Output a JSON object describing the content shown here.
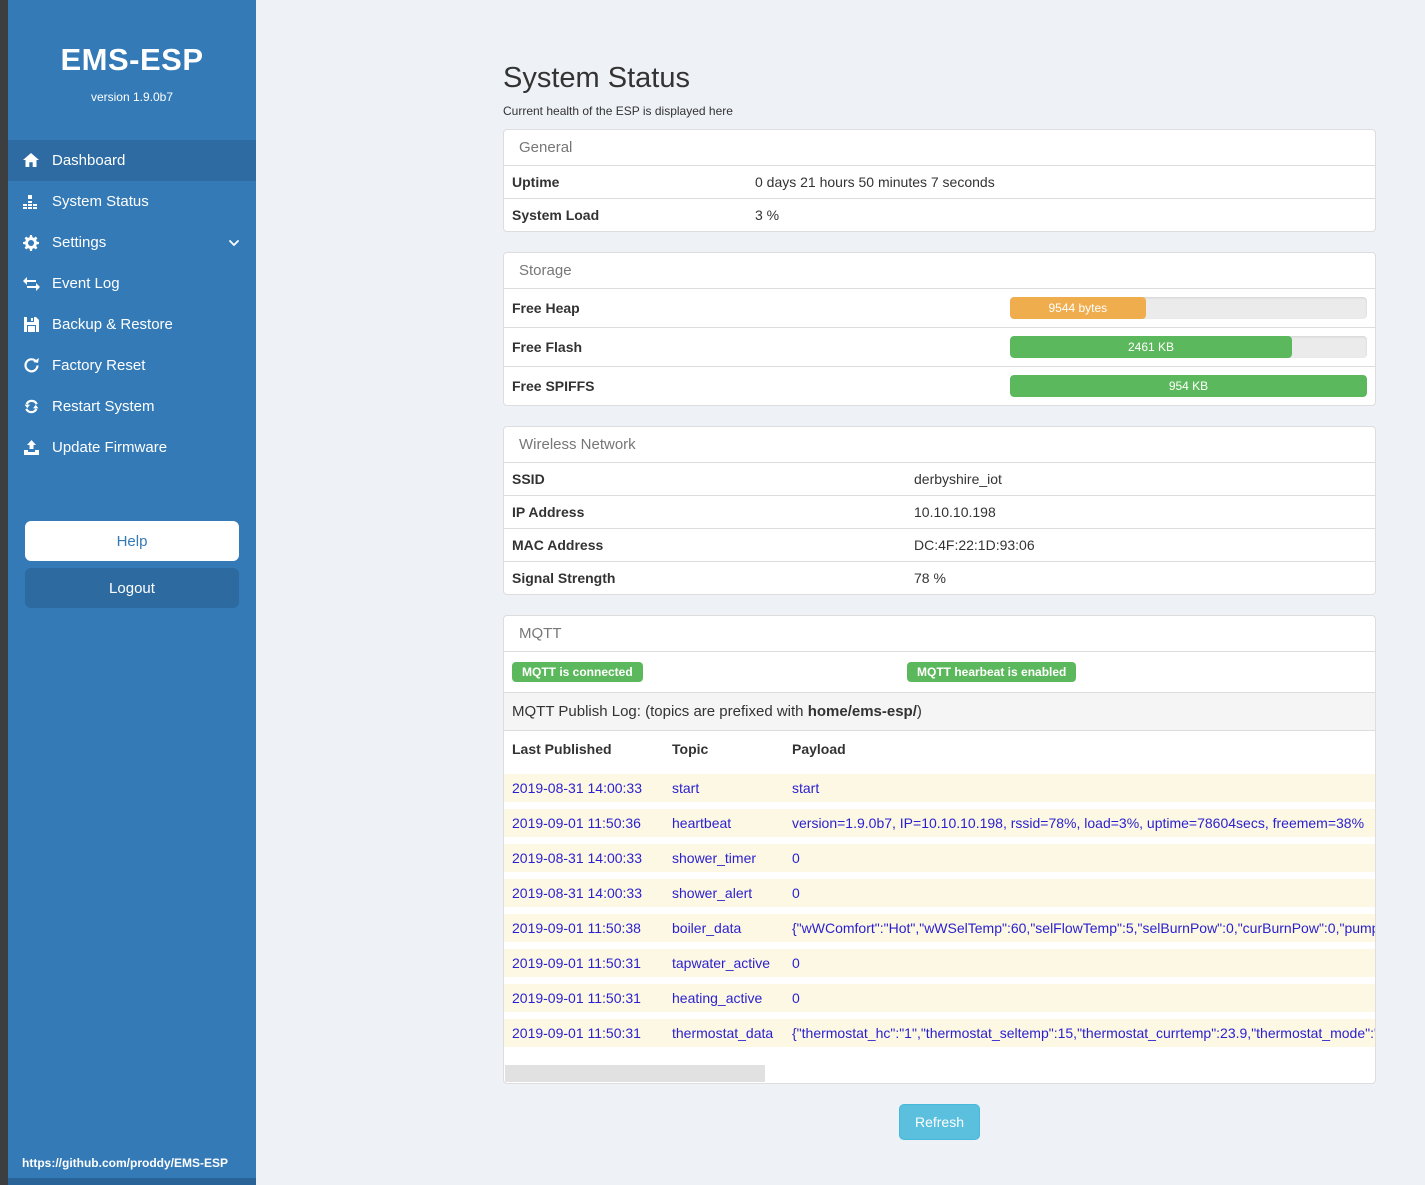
{
  "sidebar": {
    "title": "EMS-ESP",
    "version": "version 1.9.0b7",
    "items": [
      {
        "label": "Dashboard",
        "icon": "home-icon",
        "active": true
      },
      {
        "label": "System Status",
        "icon": "system-status-icon"
      },
      {
        "label": "Settings",
        "icon": "gear-icon"
      },
      {
        "label": "Event Log",
        "icon": "exchange-icon"
      },
      {
        "label": "Backup & Restore",
        "icon": "save-icon"
      },
      {
        "label": "Factory Reset",
        "icon": "rotate-icon"
      },
      {
        "label": "Restart System",
        "icon": "sync-icon"
      },
      {
        "label": "Update Firmware",
        "icon": "upload-icon"
      }
    ],
    "help_label": "Help",
    "logout_label": "Logout",
    "footer_link": "https://github.com/proddy/EMS-ESP"
  },
  "page": {
    "title": "System Status",
    "subtitle": "Current health of the ESP is displayed here",
    "refresh_label": "Refresh"
  },
  "panels": {
    "general": {
      "title": "General",
      "rows": [
        {
          "label": "Uptime",
          "value": "0 days 21 hours 50 minutes 7 seconds"
        },
        {
          "label": "System Load",
          "value": "3 %"
        }
      ]
    },
    "storage": {
      "title": "Storage",
      "rows": [
        {
          "label": "Free Heap",
          "value": "9544 bytes",
          "percent": 38,
          "color": "#f0ad4e"
        },
        {
          "label": "Free Flash",
          "value": "2461 KB",
          "percent": 79,
          "color": "#5cb85c"
        },
        {
          "label": "Free SPIFFS",
          "value": "954 KB",
          "percent": 100,
          "color": "#5cb85c"
        }
      ]
    },
    "wireless": {
      "title": "Wireless Network",
      "rows": [
        {
          "label": "SSID",
          "value": "derbyshire_iot"
        },
        {
          "label": "IP Address",
          "value": "10.10.10.198"
        },
        {
          "label": "MAC Address",
          "value": "DC:4F:22:1D:93:06"
        },
        {
          "label": "Signal Strength",
          "value": "78 %"
        }
      ]
    },
    "mqtt": {
      "title": "MQTT",
      "badges": [
        "MQTT is connected",
        "MQTT hearbeat is enabled"
      ],
      "log_caption_prefix": "MQTT Publish Log: (topics are prefixed with ",
      "log_caption_bold": "home/ems-esp/",
      "log_caption_suffix": ")",
      "columns": [
        "Last Published",
        "Topic",
        "Payload"
      ],
      "rows": [
        {
          "time": "2019-08-31 14:00:33",
          "topic": "start",
          "payload": "start"
        },
        {
          "time": "2019-09-01 11:50:36",
          "topic": "heartbeat",
          "payload": "version=1.9.0b7, IP=10.10.10.198, rssid=78%, load=3%, uptime=78604secs, freemem=38%"
        },
        {
          "time": "2019-08-31 14:00:33",
          "topic": "shower_timer",
          "payload": "0"
        },
        {
          "time": "2019-08-31 14:00:33",
          "topic": "shower_alert",
          "payload": "0"
        },
        {
          "time": "2019-09-01 11:50:38",
          "topic": "boiler_data",
          "payload": "{\"wWComfort\":\"Hot\",\"wWSelTemp\":60,\"selFlowTemp\":5,\"selBurnPow\":0,\"curBurnPow\":0,\"pump"
        },
        {
          "time": "2019-09-01 11:50:31",
          "topic": "tapwater_active",
          "payload": "0"
        },
        {
          "time": "2019-09-01 11:50:31",
          "topic": "heating_active",
          "payload": "0"
        },
        {
          "time": "2019-09-01 11:50:31",
          "topic": "thermostat_data",
          "payload": "{\"thermostat_hc\":\"1\",\"thermostat_seltemp\":15,\"thermostat_currtemp\":23.9,\"thermostat_mode\":\""
        }
      ]
    }
  },
  "colors": {
    "sidebar": "#337ab7",
    "sidebar_active": "#2d6ba2",
    "badge_green": "#5cb85c",
    "bar_orange": "#f0ad4e",
    "bar_green": "#5cb85c",
    "refresh_blue": "#5bc0de",
    "row_highlight": "#fcf8e3",
    "row_text_blue": "#2a1fd0"
  }
}
